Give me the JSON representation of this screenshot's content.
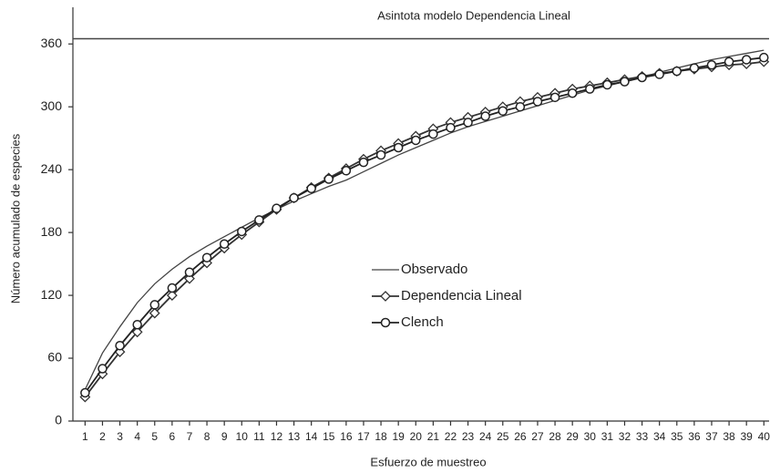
{
  "chart_data": {
    "type": "line",
    "x_label": "Esfuerzo de muestreo",
    "y_label": "Número acumulado de especies",
    "annotation": {
      "value": 365,
      "label": "Asintota modelo Dependencia Lineal"
    },
    "x": [
      1,
      2,
      3,
      4,
      5,
      6,
      7,
      8,
      9,
      10,
      11,
      12,
      13,
      14,
      15,
      16,
      17,
      18,
      19,
      20,
      21,
      22,
      23,
      24,
      25,
      26,
      27,
      28,
      29,
      30,
      31,
      32,
      33,
      34,
      35,
      36,
      37,
      38,
      39,
      40
    ],
    "xlim": [
      0.3,
      40.3
    ],
    "xticks": [
      1,
      2,
      3,
      4,
      5,
      6,
      7,
      8,
      9,
      10,
      11,
      12,
      13,
      14,
      15,
      16,
      17,
      18,
      19,
      20,
      21,
      22,
      23,
      24,
      25,
      26,
      27,
      28,
      29,
      30,
      31,
      32,
      33,
      34,
      35,
      36,
      37,
      38,
      39,
      40
    ],
    "ylim": [
      0,
      395
    ],
    "yticks": [
      0,
      60,
      120,
      180,
      240,
      300,
      360
    ],
    "legend": "center",
    "series": [
      {
        "name": "Observado",
        "color": "#444",
        "marker": "none",
        "values": [
          30,
          65,
          90,
          113,
          131,
          145,
          157,
          167,
          176,
          185,
          194,
          202,
          210,
          217,
          224,
          230,
          238,
          246,
          254,
          261,
          268,
          275,
          281,
          286,
          291,
          296,
          301,
          306,
          311,
          316,
          320,
          324,
          328,
          333,
          337,
          341,
          345,
          348,
          351,
          354
        ]
      },
      {
        "name": "Dependencia Lineal",
        "color": "#333",
        "marker": "diamond",
        "values": [
          23,
          45,
          66,
          85,
          103,
          120,
          136,
          151,
          165,
          178,
          190,
          202,
          213,
          223,
          232,
          241,
          250,
          258,
          265,
          272,
          279,
          285,
          290,
          295,
          300,
          305,
          309,
          313,
          317,
          320,
          323,
          326,
          329,
          332,
          334,
          336,
          338,
          340,
          341,
          343
        ]
      },
      {
        "name": "Clench",
        "color": "#222",
        "marker": "circle",
        "values": [
          27,
          50,
          72,
          92,
          111,
          127,
          142,
          156,
          169,
          181,
          192,
          203,
          213,
          222,
          231,
          239,
          247,
          254,
          261,
          268,
          274,
          280,
          285,
          291,
          296,
          300,
          305,
          309,
          313,
          317,
          321,
          324,
          328,
          331,
          334,
          337,
          340,
          343,
          345,
          347
        ]
      }
    ]
  }
}
